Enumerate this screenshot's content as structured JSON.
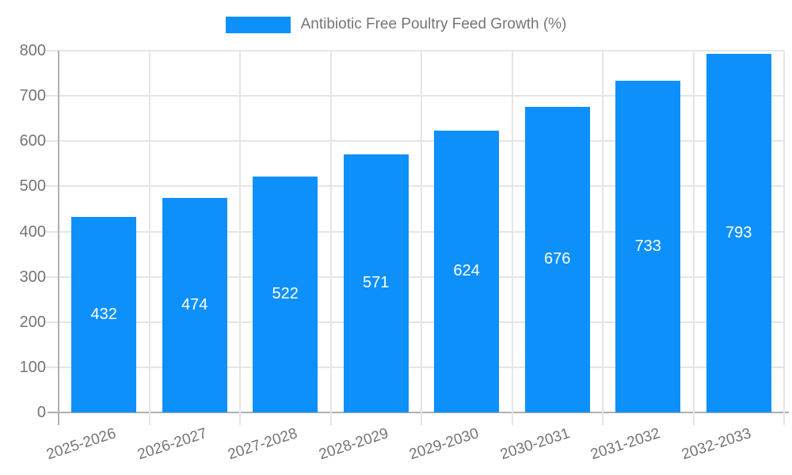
{
  "chart_data": {
    "type": "bar",
    "title": "Antibiotic Free Poultry Feed Growth (%)",
    "categories": [
      "2025-2026",
      "2026-2027",
      "2027-2028",
      "2028-2029",
      "2029-2030",
      "2030-2031",
      "2031-2032",
      "2032-2033"
    ],
    "values": [
      432,
      474,
      522,
      571,
      624,
      676,
      733,
      793
    ],
    "xlabel": "",
    "ylabel": "",
    "ylim": [
      0,
      800
    ],
    "yticks": [
      0,
      100,
      200,
      300,
      400,
      500,
      600,
      700,
      800
    ],
    "grid": true,
    "legend_position": "top",
    "bar_color": "#0e90fa",
    "value_label_color": "#ffffff",
    "axis_text_color": "#757575",
    "grid_color": "#e5e5e5",
    "axis_line_color": "#b0b0b0",
    "background_color": "#ffffff"
  }
}
